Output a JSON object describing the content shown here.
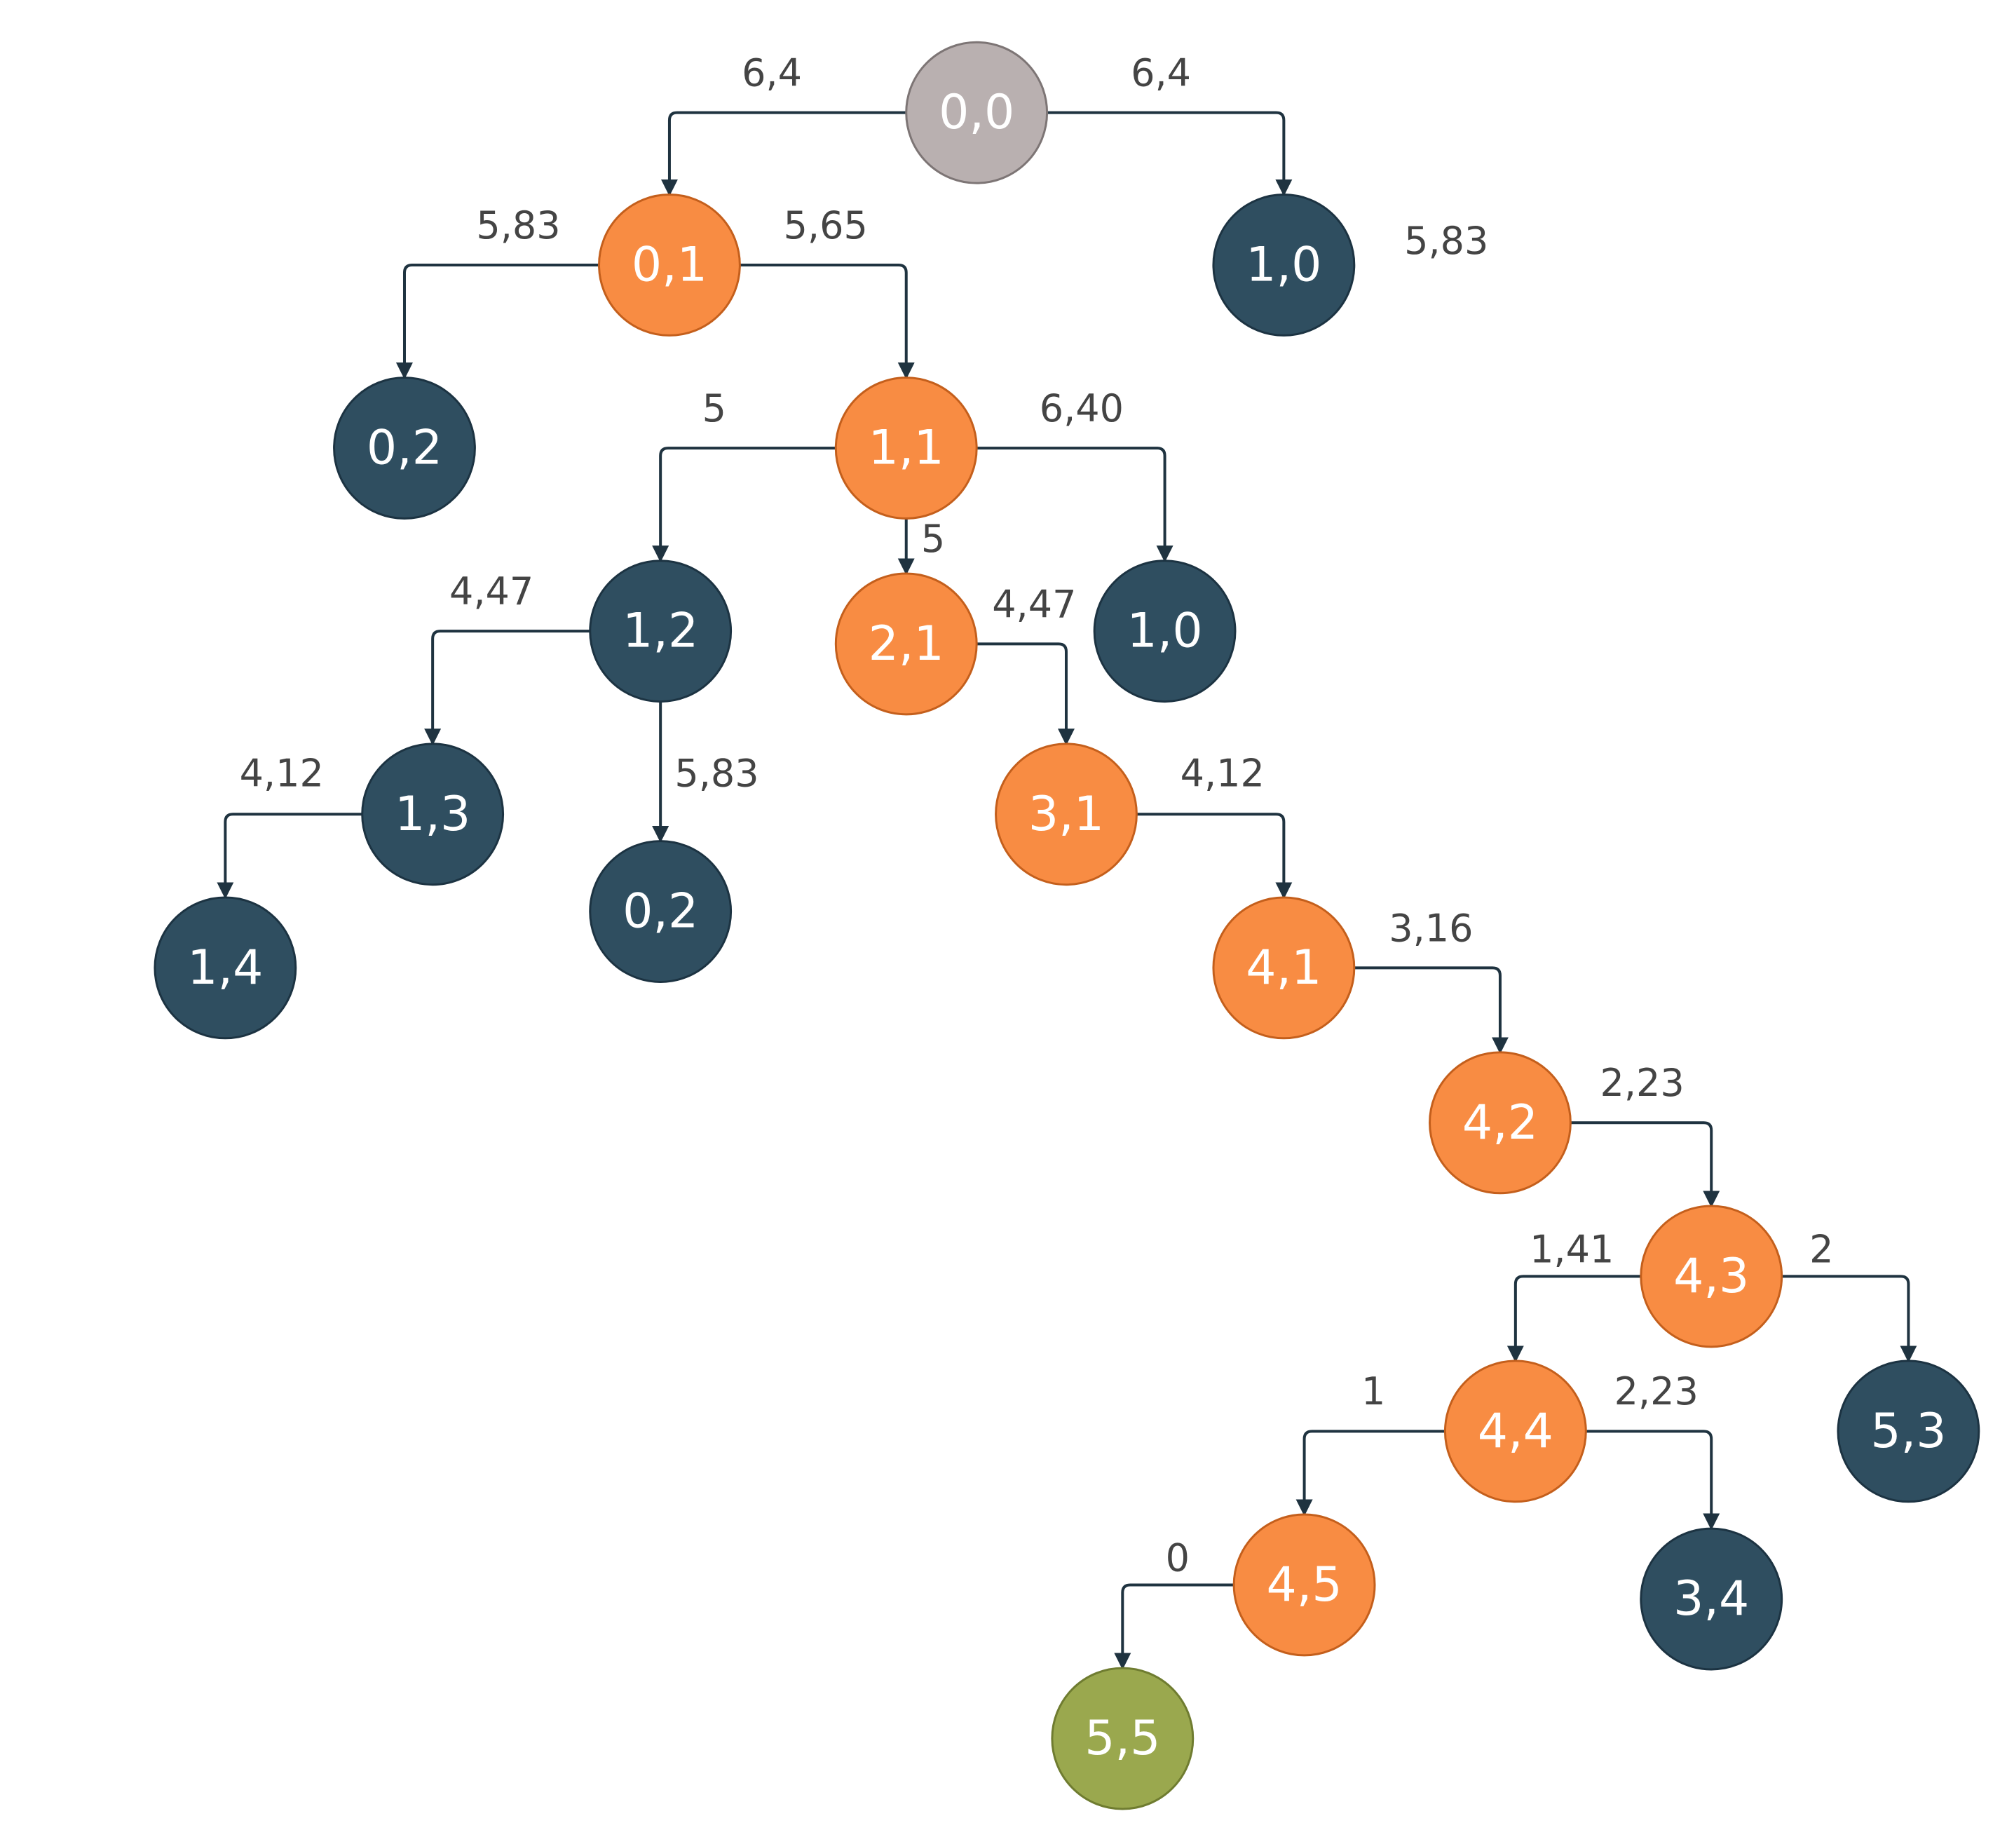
{
  "colors": {
    "start": "#b9b0b0",
    "path": "#f88c43",
    "explored": "#2f4e60",
    "goal": "#9aa84e",
    "edge": "#1f3340",
    "edge_label": "#444444"
  },
  "nodes": [
    {
      "label": "0,0",
      "kind": "start"
    },
    {
      "label": "0,1",
      "kind": "path"
    },
    {
      "label": "1,0",
      "kind": "explored"
    },
    {
      "label": "0,2",
      "kind": "explored"
    },
    {
      "label": "1,1",
      "kind": "path"
    },
    {
      "label": "1,2",
      "kind": "explored"
    },
    {
      "label": "2,1",
      "kind": "path"
    },
    {
      "label": "1,0",
      "kind": "explored"
    },
    {
      "label": "1,3",
      "kind": "explored"
    },
    {
      "label": "0,2",
      "kind": "explored"
    },
    {
      "label": "3,1",
      "kind": "path"
    },
    {
      "label": "1,4",
      "kind": "explored"
    },
    {
      "label": "4,1",
      "kind": "path"
    },
    {
      "label": "4,2",
      "kind": "path"
    },
    {
      "label": "4,3",
      "kind": "path"
    },
    {
      "label": "4,4",
      "kind": "path"
    },
    {
      "label": "5,3",
      "kind": "explored"
    },
    {
      "label": "4,5",
      "kind": "path"
    },
    {
      "label": "3,4",
      "kind": "explored"
    },
    {
      "label": "5,5",
      "kind": "goal"
    }
  ],
  "edges": [
    {
      "from": 0,
      "to": 1,
      "label": "6,4"
    },
    {
      "from": 0,
      "to": 2,
      "label": "6,4"
    },
    {
      "from": 1,
      "to": 3,
      "label": "5,83"
    },
    {
      "from": 1,
      "to": 4,
      "label": "5,65"
    },
    {
      "from": 4,
      "to": 5,
      "label": "5"
    },
    {
      "from": 4,
      "to": 6,
      "label": "5"
    },
    {
      "from": 4,
      "to": 7,
      "label": "6,40"
    },
    {
      "from": 5,
      "to": 8,
      "label": "4,47"
    },
    {
      "from": 5,
      "to": 9,
      "label": "5,83"
    },
    {
      "from": 6,
      "to": 10,
      "label": "4,47"
    },
    {
      "from": 8,
      "to": 11,
      "label": "4,12"
    },
    {
      "from": 10,
      "to": 12,
      "label": "4,12"
    },
    {
      "from": 12,
      "to": 13,
      "label": "3,16"
    },
    {
      "from": 13,
      "to": 14,
      "label": "2,23"
    },
    {
      "from": 14,
      "to": 15,
      "label": "1,41"
    },
    {
      "from": 14,
      "to": 16,
      "label": "2"
    },
    {
      "from": 15,
      "to": 17,
      "label": "1"
    },
    {
      "from": 15,
      "to": 18,
      "label": "2,23"
    },
    {
      "from": 17,
      "to": 19,
      "label": "0"
    }
  ],
  "extra_labels": [
    {
      "text": "5,83",
      "near_node": 2
    }
  ]
}
